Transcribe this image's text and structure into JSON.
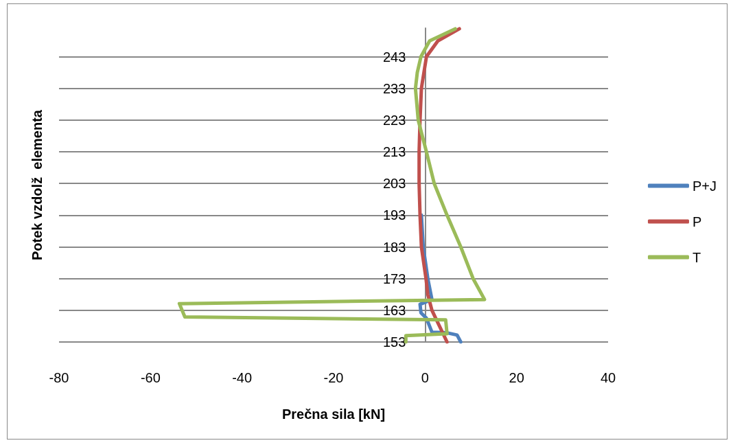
{
  "chart_data": {
    "type": "line",
    "xlabel": "Prečna sila [kN]",
    "ylabel": "Potek vzdolž  elementa",
    "xlim": [
      -80,
      40
    ],
    "xticks": [
      -80,
      -60,
      -40,
      -20,
      0,
      20,
      40
    ],
    "ylim": [
      153,
      252
    ],
    "yticks": [
      153,
      163,
      173,
      183,
      193,
      203,
      213,
      223,
      233,
      243
    ],
    "grid": "y",
    "legend": "right",
    "marker": "none",
    "line_style": "solid",
    "series": [
      {
        "name": "P+J",
        "color": "#4f81bd",
        "x": [
          7.8,
          7.0,
          4.8,
          1.5,
          0.3,
          -0.9,
          -1.1,
          1.5,
          0.6,
          -0.4,
          -0.8
        ],
        "values": [
          153,
          155.2,
          155.9,
          156.1,
          160.5,
          162.2,
          164.9,
          166.4,
          173,
          183,
          193
        ]
      },
      {
        "name": "P",
        "color": "#c0504d",
        "x": [
          4.8,
          1.5,
          0.6,
          0.2,
          -0.8,
          -1.1,
          -1.3,
          -1.3,
          -1.1,
          -0.8,
          0.3,
          2.8,
          7.5
        ],
        "values": [
          153,
          163,
          168,
          173,
          183,
          193,
          203,
          213,
          223,
          233,
          243,
          248,
          251.8
        ]
      },
      {
        "name": "T",
        "color": "#9bbb59",
        "x": [
          -4.2,
          -4.2,
          4.8,
          4.5,
          -52.5,
          -53.7,
          13,
          10.5,
          7.8,
          4.8,
          2,
          0.3,
          -1.5,
          -2.1,
          -1.7,
          -0.9,
          1.0,
          6.6
        ],
        "values": [
          153,
          155,
          155.6,
          160,
          160.9,
          165.1,
          166.4,
          173,
          183,
          193,
          203,
          213,
          223,
          233,
          238,
          243,
          248,
          251.8
        ]
      }
    ]
  }
}
